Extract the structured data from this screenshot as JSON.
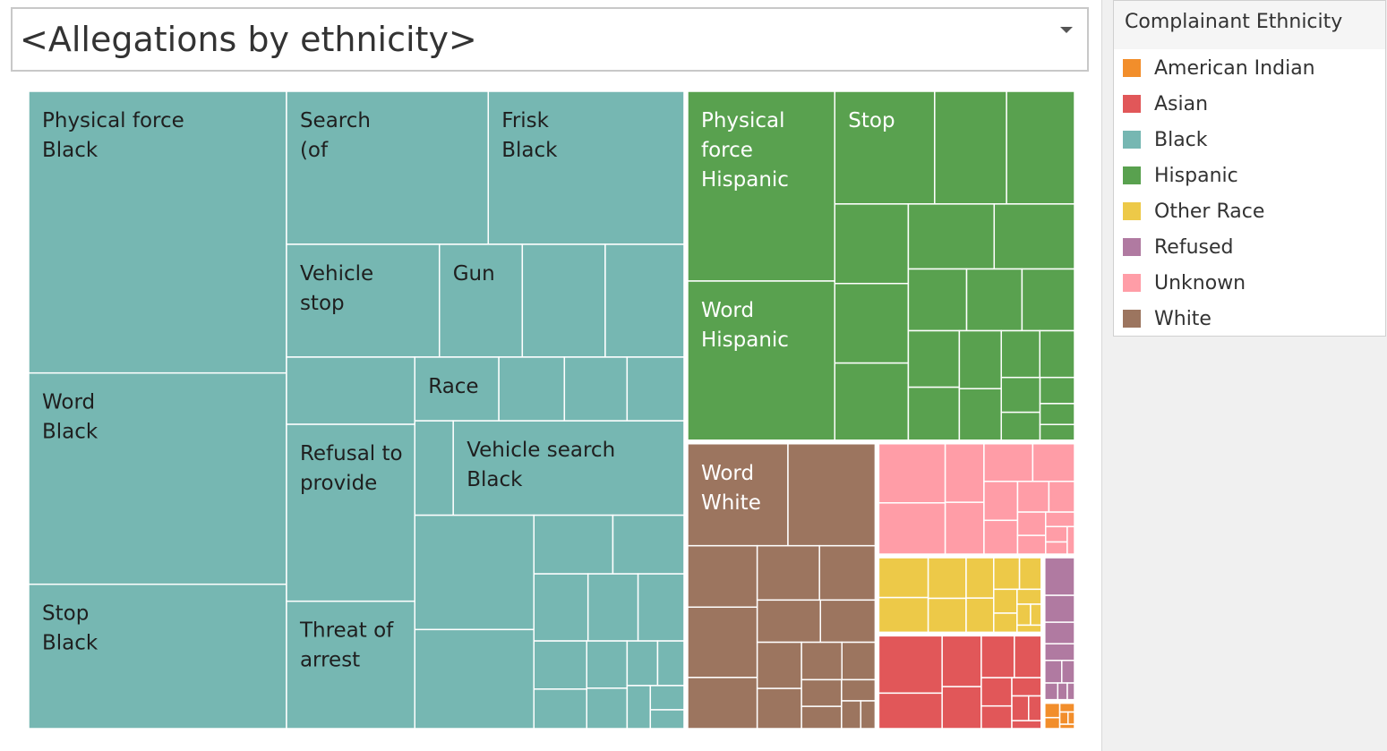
{
  "parameter_control": {
    "selected": "<Allegations by ethnicity>"
  },
  "legend": {
    "title": "Complainant Ethnicity",
    "items": [
      {
        "label": "American Indian",
        "color": "#f28e2b"
      },
      {
        "label": "Asian",
        "color": "#e15759"
      },
      {
        "label": "Black",
        "color": "#76b7b2"
      },
      {
        "label": "Hispanic",
        "color": "#59a14f"
      },
      {
        "label": "Other Race",
        "color": "#edc948"
      },
      {
        "label": "Refused",
        "color": "#b07aa1"
      },
      {
        "label": "Unknown",
        "color": "#ff9da7"
      },
      {
        "label": "White",
        "color": "#9c755f"
      }
    ]
  },
  "chart_data": {
    "type": "treemap",
    "size_measure": "allegation count (relative, estimated from tile areas)",
    "groups": [
      {
        "ethnicity": "Black",
        "color": "#76b7b2",
        "tiles": [
          {
            "label": [
              "Physical force",
              "Black"
            ],
            "value": 80000
          },
          {
            "label": [
              "Word",
              "Black"
            ],
            "value": 60000
          },
          {
            "label": [
              "Stop",
              "Black"
            ],
            "value": 41000
          },
          {
            "label": [
              "Search",
              "(of"
            ],
            "value": 34000
          },
          {
            "label": [
              "Frisk",
              "Black"
            ],
            "value": 33000
          },
          {
            "label": [
              "Vehicle",
              "stop"
            ],
            "value": 19000
          },
          {
            "label": [
              "Gun"
            ],
            "value": 10300
          },
          {
            "label": [],
            "value": 10300
          },
          {
            "label": [],
            "value": 9800
          },
          {
            "label": [],
            "value": 9500
          },
          {
            "label": [
              "Refusal to",
              "provide"
            ],
            "value": 25000
          },
          {
            "label": [
              "Threat of",
              "arrest"
            ],
            "value": 18000
          },
          {
            "label": [
              "Race"
            ],
            "value": 5900
          },
          {
            "label": [],
            "value": 4600
          },
          {
            "label": [],
            "value": 4400
          },
          {
            "label": [],
            "value": 4000
          },
          {
            "label": [],
            "value": 4000
          },
          {
            "label": [
              "Vehicle search",
              "Black"
            ],
            "value": 24000
          },
          {
            "label": [],
            "value": 15000
          },
          {
            "label": [],
            "value": 13000
          },
          {
            "label": [],
            "value": 5100
          },
          {
            "label": [],
            "value": 4600
          },
          {
            "label": [],
            "value": 4000
          },
          {
            "label": [],
            "value": 3700
          },
          {
            "label": [],
            "value": 3400
          },
          {
            "label": [],
            "value": 2800
          },
          {
            "label": [],
            "value": 2300
          },
          {
            "label": [],
            "value": 2100
          },
          {
            "label": [],
            "value": 1800
          },
          {
            "label": [],
            "value": 1500
          },
          {
            "label": [],
            "value": 1300
          },
          {
            "label": [],
            "value": 1100
          },
          {
            "label": [],
            "value": 900
          },
          {
            "label": [],
            "value": 700
          }
        ]
      },
      {
        "ethnicity": "Hispanic",
        "color": "#59a14f",
        "tiles": [
          {
            "label": [
              "Physical",
              "force",
              "Hispanic"
            ],
            "value": 31000
          },
          {
            "label": [
              "Word",
              "Hispanic"
            ],
            "value": 26000
          },
          {
            "label": [
              "Stop"
            ],
            "value": 12500
          },
          {
            "label": [],
            "value": 9000
          },
          {
            "label": [],
            "value": 8500
          },
          {
            "label": [],
            "value": 6500
          },
          {
            "label": [],
            "value": 6500
          },
          {
            "label": [],
            "value": 6300
          },
          {
            "label": [],
            "value": 6200
          },
          {
            "label": [],
            "value": 5800
          },
          {
            "label": [],
            "value": 4000
          },
          {
            "label": [],
            "value": 3800
          },
          {
            "label": [],
            "value": 3600
          },
          {
            "label": [],
            "value": 3200
          },
          {
            "label": [],
            "value": 3000
          },
          {
            "label": [],
            "value": 2700
          },
          {
            "label": [],
            "value": 2400
          },
          {
            "label": [],
            "value": 2000
          },
          {
            "label": [],
            "value": 1800
          },
          {
            "label": [],
            "value": 1500
          },
          {
            "label": [],
            "value": 1200
          },
          {
            "label": [],
            "value": 1000
          },
          {
            "label": [],
            "value": 800
          },
          {
            "label": [],
            "value": 600
          }
        ]
      },
      {
        "ethnicity": "White",
        "color": "#9c755f",
        "tiles": [
          {
            "label": [
              "Word",
              "White"
            ],
            "value": 11500
          },
          {
            "label": [],
            "value": 10000
          },
          {
            "label": [],
            "value": 4800
          },
          {
            "label": [],
            "value": 5500
          },
          {
            "label": [],
            "value": 4000
          },
          {
            "label": [],
            "value": 3800
          },
          {
            "label": [],
            "value": 3400
          },
          {
            "label": [],
            "value": 3000
          },
          {
            "label": [],
            "value": 2600
          },
          {
            "label": [],
            "value": 2300
          },
          {
            "label": [],
            "value": 2000
          },
          {
            "label": [],
            "value": 1700
          },
          {
            "label": [],
            "value": 1400
          },
          {
            "label": [],
            "value": 1200
          },
          {
            "label": [],
            "value": 1000
          },
          {
            "label": [],
            "value": 800
          },
          {
            "label": [],
            "value": 600
          },
          {
            "label": [],
            "value": 450
          }
        ]
      },
      {
        "ethnicity": "Unknown",
        "color": "#ff9da7",
        "tiles": [
          {
            "label": [],
            "value": 4500
          },
          {
            "label": [],
            "value": 3900
          },
          {
            "label": [],
            "value": 2600
          },
          {
            "label": [],
            "value": 2300
          },
          {
            "label": [],
            "value": 2100
          },
          {
            "label": [],
            "value": 1800
          },
          {
            "label": [],
            "value": 1500
          },
          {
            "label": [],
            "value": 1300
          },
          {
            "label": [],
            "value": 1100
          },
          {
            "label": [],
            "value": 900
          },
          {
            "label": [],
            "value": 750
          },
          {
            "label": [],
            "value": 600
          },
          {
            "label": [],
            "value": 480
          },
          {
            "label": [],
            "value": 380
          },
          {
            "label": [],
            "value": 300
          },
          {
            "label": [],
            "value": 230
          }
        ]
      },
      {
        "ethnicity": "Other Race",
        "color": "#edc948",
        "tiles": [
          {
            "label": [],
            "value": 2300
          },
          {
            "label": [],
            "value": 2000
          },
          {
            "label": [],
            "value": 1800
          },
          {
            "label": [],
            "value": 1500
          },
          {
            "label": [],
            "value": 1300
          },
          {
            "label": [],
            "value": 1100
          },
          {
            "label": [],
            "value": 950
          },
          {
            "label": [],
            "value": 800
          },
          {
            "label": [],
            "value": 650
          },
          {
            "label": [],
            "value": 520
          },
          {
            "label": [],
            "value": 420
          },
          {
            "label": [],
            "value": 330
          },
          {
            "label": [],
            "value": 260
          },
          {
            "label": [],
            "value": 200
          }
        ]
      },
      {
        "ethnicity": "Asian",
        "color": "#e15759",
        "tiles": [
          {
            "label": [],
            "value": 4200
          },
          {
            "label": [],
            "value": 2600
          },
          {
            "label": [],
            "value": 2300
          },
          {
            "label": [],
            "value": 1900
          },
          {
            "label": [],
            "value": 1600
          },
          {
            "label": [],
            "value": 1300
          },
          {
            "label": [],
            "value": 1000
          },
          {
            "label": [],
            "value": 800
          },
          {
            "label": [],
            "value": 620
          },
          {
            "label": [],
            "value": 480
          },
          {
            "label": [],
            "value": 360
          },
          {
            "label": [],
            "value": 270
          }
        ]
      },
      {
        "ethnicity": "Refused",
        "color": "#b07aa1",
        "tiles": [
          {
            "label": [],
            "value": 1400
          },
          {
            "label": [],
            "value": 1000
          },
          {
            "label": [],
            "value": 800
          },
          {
            "label": [],
            "value": 620
          },
          {
            "label": [],
            "value": 480
          },
          {
            "label": [],
            "value": 360
          },
          {
            "label": [],
            "value": 270
          },
          {
            "label": [],
            "value": 200
          },
          {
            "label": [],
            "value": 150
          }
        ]
      },
      {
        "ethnicity": "American Indian",
        "color": "#f28e2b",
        "tiles": [
          {
            "label": [],
            "value": 300
          },
          {
            "label": [],
            "value": 230
          },
          {
            "label": [],
            "value": 180
          },
          {
            "label": [],
            "value": 140
          },
          {
            "label": [],
            "value": 110
          },
          {
            "label": [],
            "value": 90
          }
        ]
      }
    ]
  }
}
